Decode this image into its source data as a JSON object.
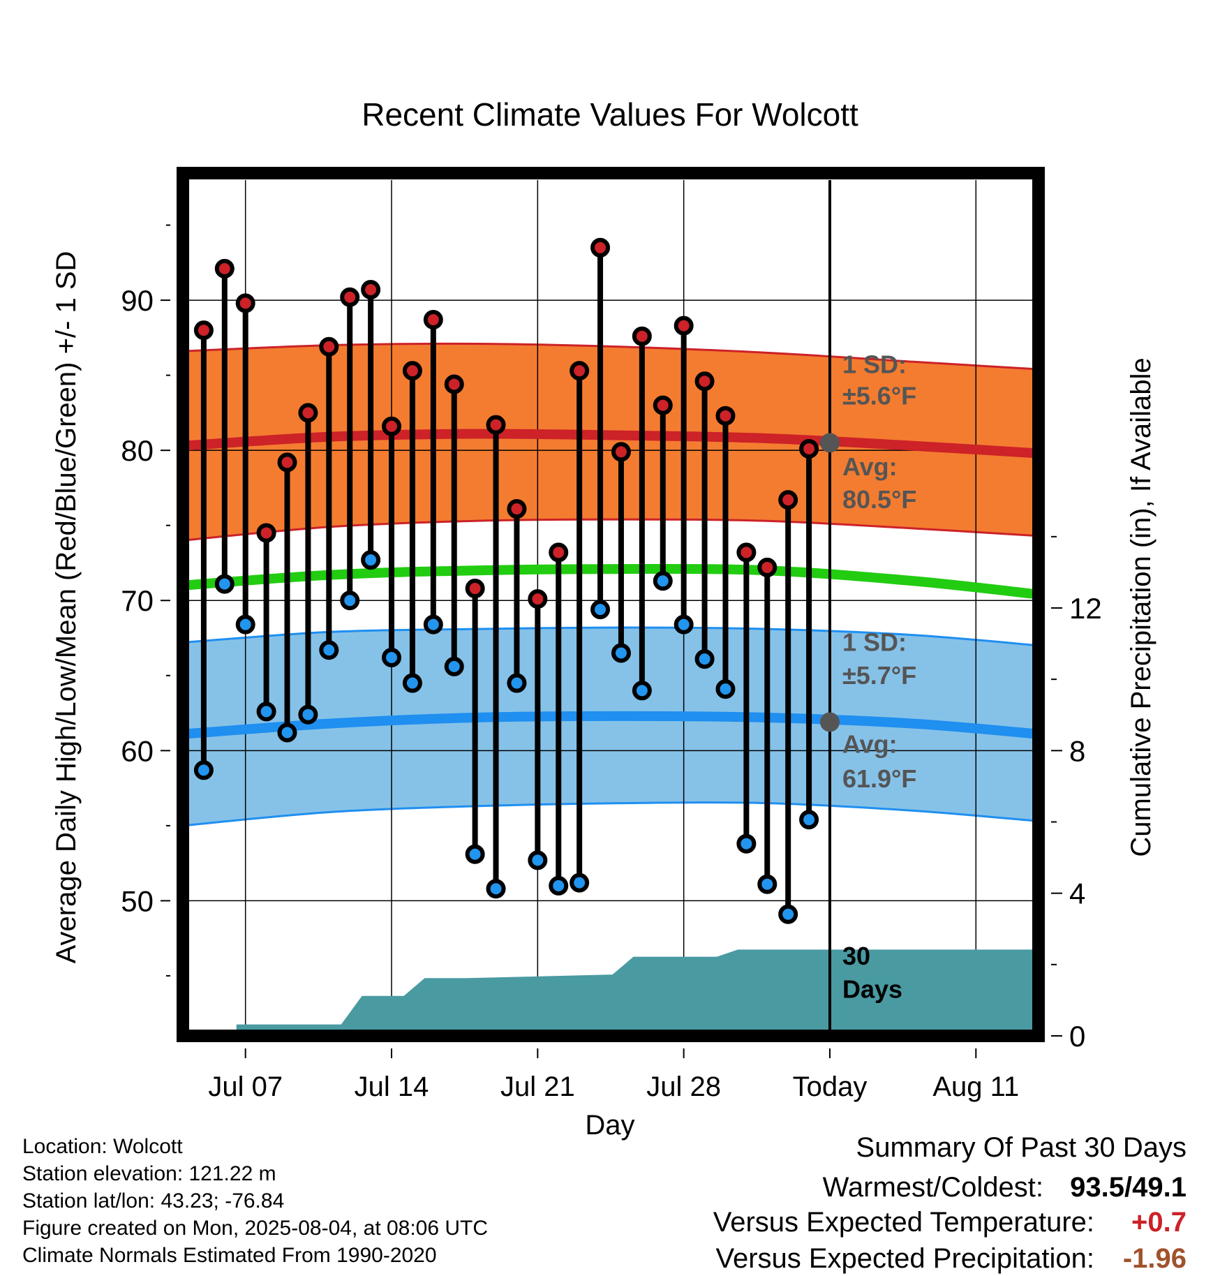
{
  "chart_data": {
    "type": "line",
    "title": "Recent Climate Values For Wolcott",
    "xlabel": "Day",
    "ylabel": "Average Daily High/Low/Mean (Red/Blue/Green) +/- 1 SD",
    "ylabel_right": "Cumulative Precipitation (in), If Available",
    "x_ticks": [
      {
        "label": "Jul 07",
        "day": 3
      },
      {
        "label": "Jul 14",
        "day": 10
      },
      {
        "label": "Jul 21",
        "day": 17
      },
      {
        "label": "Jul 28",
        "day": 24
      },
      {
        "label": "Today",
        "day": 31
      },
      {
        "label": "Aug 11",
        "day": 38
      }
    ],
    "xlim": [
      0,
      41
    ],
    "y_ticks": [
      50,
      60,
      70,
      80,
      90
    ],
    "ylim": [
      41,
      98
    ],
    "y2_ticks": [
      0,
      4,
      8,
      12
    ],
    "y2lim": [
      0,
      24
    ],
    "grid": true,
    "daily": {
      "days": [
        1,
        2,
        3,
        4,
        5,
        6,
        7,
        8,
        9,
        10,
        11,
        12,
        13,
        14,
        15,
        16,
        17,
        18,
        19,
        20,
        21,
        22,
        23,
        24,
        25,
        26,
        27,
        28,
        29,
        30
      ],
      "high": [
        88.0,
        92.1,
        89.8,
        74.5,
        79.2,
        82.5,
        86.9,
        90.2,
        90.7,
        81.6,
        85.3,
        88.7,
        84.4,
        70.8,
        81.7,
        76.1,
        70.1,
        73.2,
        85.3,
        93.5,
        79.9,
        87.6,
        83.0,
        88.3,
        84.6,
        82.3,
        73.2,
        72.2,
        76.7,
        80.1
      ],
      "low": [
        58.7,
        71.1,
        68.4,
        62.6,
        61.2,
        62.4,
        66.7,
        70.0,
        72.7,
        66.2,
        64.5,
        68.4,
        65.6,
        53.1,
        50.8,
        64.5,
        52.7,
        51.0,
        51.2,
        69.4,
        66.5,
        64.0,
        71.3,
        68.4,
        66.1,
        64.1,
        53.8,
        51.1,
        49.1,
        55.4
      ]
    },
    "normals": {
      "days": [
        0,
        7,
        14,
        21,
        28,
        35,
        41
      ],
      "avg_high": [
        80.3,
        80.9,
        81.1,
        81.0,
        80.8,
        80.3,
        79.8
      ],
      "avg_high_upper": [
        86.6,
        87.0,
        87.1,
        86.9,
        86.5,
        85.9,
        85.4
      ],
      "avg_high_lower": [
        74.0,
        74.9,
        75.3,
        75.4,
        75.3,
        74.8,
        74.3
      ],
      "avg_mean": [
        71.0,
        71.7,
        72.0,
        72.1,
        72.0,
        71.3,
        70.4
      ],
      "avg_low": [
        61.1,
        61.8,
        62.2,
        62.3,
        62.2,
        61.8,
        61.1
      ],
      "avg_low_upper": [
        67.2,
        67.9,
        68.1,
        68.2,
        68.1,
        67.7,
        67.0
      ],
      "avg_low_lower": [
        55.0,
        55.9,
        56.3,
        56.5,
        56.5,
        56.0,
        55.3
      ]
    },
    "precip": {
      "points": [
        [
          0,
          0
        ],
        [
          2.6,
          0
        ],
        [
          2.6,
          0.3
        ],
        [
          7.6,
          0.3
        ],
        [
          8.6,
          1.1
        ],
        [
          10.6,
          1.1
        ],
        [
          11.6,
          1.6
        ],
        [
          13.6,
          1.6
        ],
        [
          20.6,
          1.7
        ],
        [
          21.6,
          2.2
        ],
        [
          25.6,
          2.2
        ],
        [
          26.6,
          2.4
        ],
        [
          41,
          2.4
        ]
      ]
    },
    "today_markers": {
      "high": 80.5,
      "low": 61.9
    },
    "annotations": {
      "high_sd_line1": "1 SD:",
      "high_sd_line2": "±5.6°F",
      "high_avg_line1": "Avg:",
      "high_avg_line2": "80.5°F",
      "low_sd_line1": "1 SD:",
      "low_sd_line2": "±5.7°F",
      "low_avg_line1": "Avg:",
      "low_avg_line2": "61.9°F",
      "days_line1": "30",
      "days_line2": "Days"
    },
    "colors": {
      "high_band": "#f47c30",
      "high_line": "#cc2228",
      "low_band": "#86c2e8",
      "low_line": "#1f8ff0",
      "mean_line": "#22cc11",
      "precip": "#4a9aa2",
      "high_dot": "#cc2228",
      "low_dot": "#2295ee",
      "annotation": "#555555"
    }
  },
  "footer": {
    "location": "Location: Wolcott",
    "elevation": "Station elevation: 121.22 m",
    "latlon": "Station lat/lon: 43.23; -76.84",
    "created": "Figure created on Mon, 2025-08-04, at 08:06 UTC",
    "normals": "Climate Normals Estimated From 1990-2020"
  },
  "summary": {
    "title": "Summary Of Past 30 Days",
    "warm_cold_label": "Warmest/Coldest:",
    "warm_cold_value": "93.5/49.1",
    "temp_label": "Versus Expected Temperature:",
    "temp_value": "+0.7",
    "precip_label": "Versus Expected Precipitation:",
    "precip_value": "-1.96",
    "temp_color": "#cc2228",
    "precip_color": "#a0522d"
  }
}
